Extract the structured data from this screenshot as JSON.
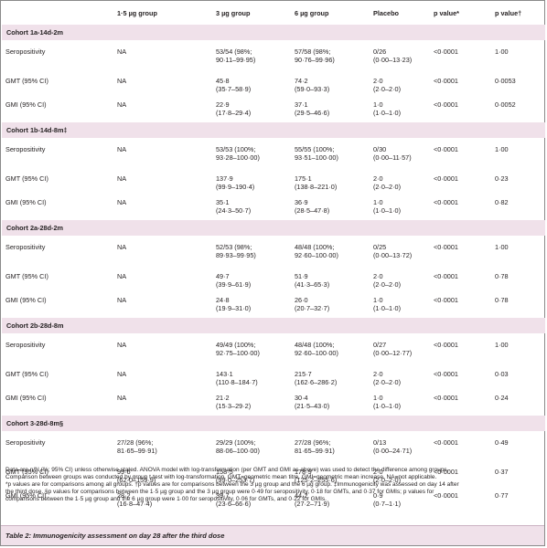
{
  "headers": [
    "",
    "1·5 µg group",
    "3 µg group",
    "6 µg group",
    "Placebo",
    "p value*",
    "p value†"
  ],
  "cohorts": [
    {
      "title": "Cohort 1a-14d-2m",
      "rows": [
        {
          "label": "Seropositivity",
          "g15": [
            "NA"
          ],
          "g3": [
            "53/54 (98%;",
            "90·11–99·95)"
          ],
          "g6": [
            "57/58 (98%;",
            "90·76–99·96)"
          ],
          "placebo": [
            "0/26",
            "(0·00–13·23)"
          ],
          "p1": "<0·0001",
          "p2": "1·00"
        },
        {
          "label": "GMT (95% CI)",
          "g15": [
            "NA"
          ],
          "g3": [
            "45·8",
            "(35·7–58·9)"
          ],
          "g6": [
            "74·2",
            "(59·0–93·3)"
          ],
          "placebo": [
            "2·0",
            "(2·0–2·0)"
          ],
          "p1": "<0·0001",
          "p2": "0·0053"
        },
        {
          "label": "GMI (95% CI)",
          "g15": [
            "NA"
          ],
          "g3": [
            "22·9",
            "(17·8–29·4)"
          ],
          "g6": [
            "37·1",
            "(29·5–46·6)"
          ],
          "placebo": [
            "1·0",
            "(1·0–1·0)"
          ],
          "p1": "<0·0001",
          "p2": "0·0052"
        }
      ]
    },
    {
      "title": "Cohort 1b-14d-8m‡",
      "rows": [
        {
          "label": "Seropositivity",
          "g15": [
            "NA"
          ],
          "g3": [
            "53/53 (100%;",
            "93·28–100·00)"
          ],
          "g6": [
            "55/55 (100%;",
            "93·51–100·00)"
          ],
          "placebo": [
            "0/30",
            "(0·00–11·57)"
          ],
          "p1": "<0·0001",
          "p2": "1·00"
        },
        {
          "label": "GMT (95% CI)",
          "g15": [
            "NA"
          ],
          "g3": [
            "137·9",
            "(99·9–190·4)"
          ],
          "g6": [
            "175·1",
            "(138·8–221·0)"
          ],
          "placebo": [
            "2·0",
            "(2·0–2·0)"
          ],
          "p1": "<0·0001",
          "p2": "0·23"
        },
        {
          "label": "GMI (95% CI)",
          "g15": [
            "NA"
          ],
          "g3": [
            "35·1",
            "(24·3–50·7)"
          ],
          "g6": [
            "36·9",
            "(28·5–47·8)"
          ],
          "placebo": [
            "1·0",
            "(1·0–1·0)"
          ],
          "p1": "<0·0001",
          "p2": "0·82"
        }
      ]
    },
    {
      "title": "Cohort 2a-28d-2m",
      "rows": [
        {
          "label": "Seropositivity",
          "g15": [
            "NA"
          ],
          "g3": [
            "52/53 (98%;",
            "89·93–99·95)"
          ],
          "g6": [
            "48/48 (100%;",
            "92·60–100·00)"
          ],
          "placebo": [
            "0/25",
            "(0·00–13·72)"
          ],
          "p1": "<0·0001",
          "p2": "1·00"
        },
        {
          "label": "GMT (95% CI)",
          "g15": [
            "NA"
          ],
          "g3": [
            "49·7",
            "(39·9–61·9)"
          ],
          "g6": [
            "51·9",
            "(41·3–65·3)"
          ],
          "placebo": [
            "2·0",
            "(2·0–2·0)"
          ],
          "p1": "<0·0001",
          "p2": "0·78"
        },
        {
          "label": "GMI (95% CI)",
          "g15": [
            "NA"
          ],
          "g3": [
            "24·8",
            "(19·9–31·0)"
          ],
          "g6": [
            "26·0",
            "(20·7–32·7)"
          ],
          "placebo": [
            "1·0",
            "(1·0–1·0)"
          ],
          "p1": "<0·0001",
          "p2": "0·78"
        }
      ]
    },
    {
      "title": "Cohort 2b-28d-8m",
      "rows": [
        {
          "label": "Seropositivity",
          "g15": [
            "NA"
          ],
          "g3": [
            "49/49 (100%;",
            "92·75–100·00)"
          ],
          "g6": [
            "48/48 (100%;",
            "92·60–100·00)"
          ],
          "placebo": [
            "0/27",
            "(0·00–12·77)"
          ],
          "p1": "<0·0001",
          "p2": "1·00"
        },
        {
          "label": "GMT (95% CI)",
          "g15": [
            "NA"
          ],
          "g3": [
            "143·1",
            "(110·8–184·7)"
          ],
          "g6": [
            "215·7",
            "(162·6–286·2)"
          ],
          "placebo": [
            "2·0",
            "(2·0–2·0)"
          ],
          "p1": "<0·0001",
          "p2": "0·03"
        },
        {
          "label": "GMI (95% CI)",
          "g15": [
            "NA"
          ],
          "g3": [
            "21·2",
            "(15·3–29·2)"
          ],
          "g6": [
            "30·4",
            "(21·5–43·0)"
          ],
          "placebo": [
            "1·0",
            "(1·0–1·0)"
          ],
          "p1": "<0·0001",
          "p2": "0·24"
        }
      ]
    },
    {
      "title": "Cohort 3-28d-8m§",
      "rows": [
        {
          "label": "Seropositivity",
          "g15": [
            "27/28 (96%;",
            "81·65–99·91)"
          ],
          "g3": [
            "29/29 (100%;",
            "88·06–100·00)"
          ],
          "g6": [
            "27/28 (96%;",
            "81·65–99·91)"
          ],
          "placebo": [
            "0/13",
            "(0·00–24·71)"
          ],
          "p1": "<0·0001",
          "p2": "0·49"
        },
        {
          "label": "GMT (95% CI)",
          "g15": [
            "99·6",
            "(62·0–159·9)"
          ],
          "g3": [
            "158·5",
            "(99·0–253·7)"
          ],
          "g6": [
            "178·9",
            "(125·2–255·6)"
          ],
          "placebo": [
            "2·0",
            "(2·0–2·0)"
          ],
          "p1": "<0·0001",
          "p2": "0·37"
        },
        {
          "label": "GMI (95% CI)",
          "g15": [
            "28·2",
            "(16·8–47·4)"
          ],
          "g3": [
            "39·7",
            "(23·6–66·6)"
          ],
          "g6": [
            "44·2",
            "(27·2–71·9)"
          ],
          "placebo": [
            "0·9",
            "(0·7–1·1)"
          ],
          "p1": "<0·0001",
          "p2": "0·77"
        }
      ]
    }
  ],
  "footnotes": [
    "Data are n/N (%; 95% CI) unless otherwise stated. ANOVA model with log-transformation (per GMT and GMI as above) was used to detect the difference among groups.",
    "Comparison between groups was conducted by group t-test with log-transformation. GMT=geometric mean titre. GMI=geometric mean increase. NA=not applicable.",
    "*p values are for comparisons among all groups. †p values are for comparisons between the 3 µg group and the 6 µg group. ‡Immunogenicity was assessed on day 14 after",
    "the third dose. §p values for comparisons between the 1·5 µg group and the 3 µg group were 0·49 for seropositivity, 0·18 for GMTs, and 0·37 for GMIs; p values for",
    "comparisons between the 1·5 µg group and the 6 µg group were 1·00 for seropositivity, 0·06 for GMTs, and 0·22 for GMIs."
  ],
  "caption": "Table 2: Immunogenicity assessment on day 28 after the third dose"
}
